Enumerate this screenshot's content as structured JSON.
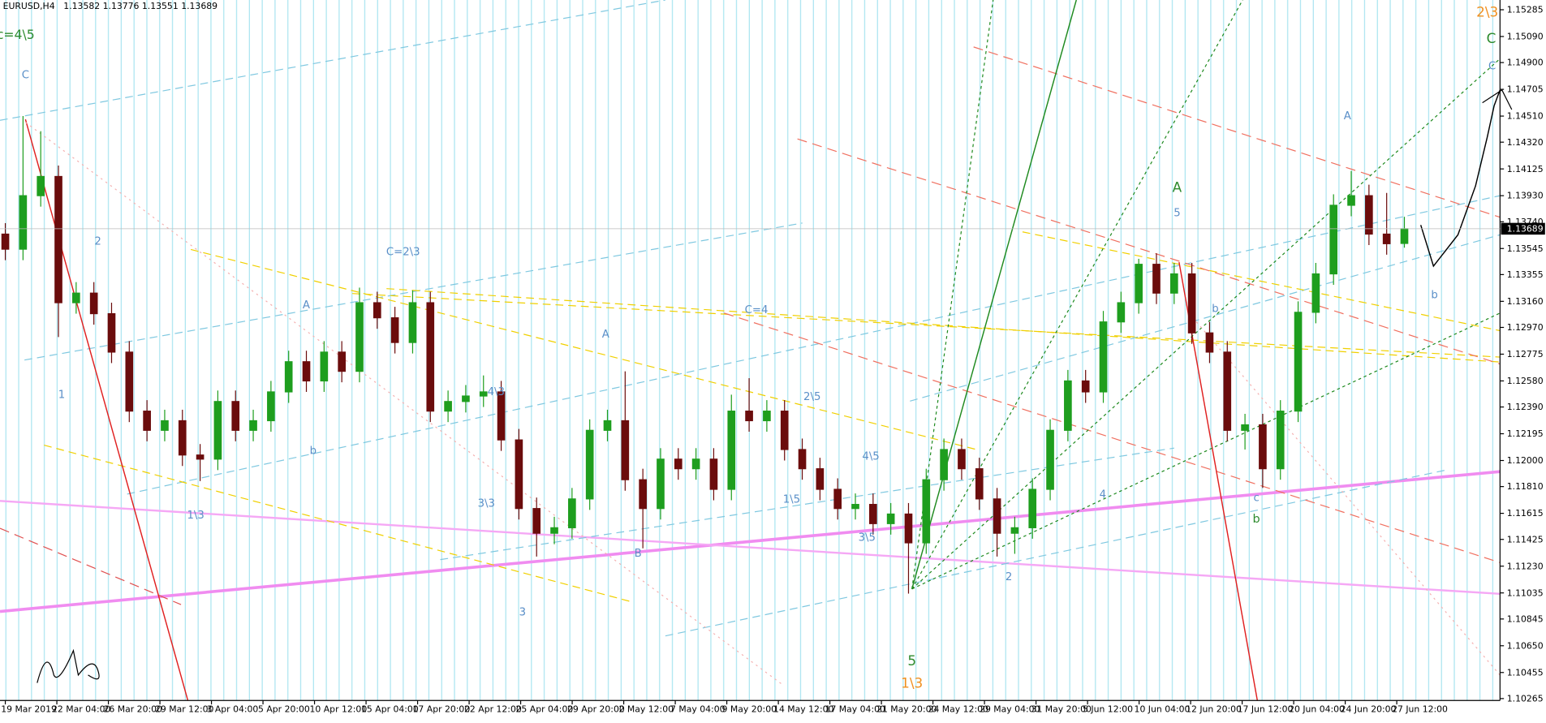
{
  "header": {
    "symbol": "EURUSD,H4"
  },
  "chart_data": {
    "type": "candlestick",
    "x": [
      0,
      1,
      2,
      3,
      4,
      5,
      6,
      7,
      8,
      9,
      10,
      11,
      12,
      13,
      14,
      15,
      16,
      17,
      18,
      19,
      20,
      21,
      22,
      23,
      24,
      25,
      26,
      27,
      28,
      29,
      30,
      31,
      32,
      33,
      34,
      35,
      36,
      37,
      38,
      39,
      40,
      41,
      42,
      43,
      44,
      45,
      46,
      47,
      48,
      49,
      50,
      51,
      52,
      53,
      54,
      55,
      56,
      57,
      58,
      59,
      60,
      61,
      62,
      63,
      64,
      65,
      66,
      67,
      68,
      69,
      70,
      71,
      72,
      73,
      74,
      75,
      76,
      77,
      78,
      79
    ],
    "open": [
      1.1365,
      1.1354,
      1.1393,
      1.1407,
      1.1315,
      1.1322,
      1.1307,
      1.1279,
      1.1236,
      1.1222,
      1.1229,
      1.1204,
      1.1201,
      1.1243,
      1.1222,
      1.1229,
      1.125,
      1.1272,
      1.1258,
      1.1279,
      1.1265,
      1.1315,
      1.1304,
      1.1286,
      1.1315,
      1.1236,
      1.1243,
      1.1247,
      1.125,
      1.1215,
      1.1165,
      1.1147,
      1.1151,
      1.1172,
      1.1222,
      1.1229,
      1.1186,
      1.1165,
      1.1201,
      1.1194,
      1.1201,
      1.1179,
      1.1236,
      1.1229,
      1.1236,
      1.1208,
      1.1194,
      1.1179,
      1.1165,
      1.1168,
      1.1154,
      1.1161,
      1.114,
      1.1186,
      1.1208,
      1.1194,
      1.1172,
      1.1147,
      1.1151,
      1.1179,
      1.1222,
      1.1258,
      1.125,
      1.1301,
      1.1315,
      1.1343,
      1.1322,
      1.1336,
      1.1293,
      1.1279,
      1.1222,
      1.1226,
      1.1194,
      1.1236,
      1.1308,
      1.1336,
      1.1386,
      1.1393,
      1.1365,
      1.13582
    ],
    "high": [
      1.1373,
      1.1451,
      1.144,
      1.1415,
      1.133,
      1.133,
      1.1315,
      1.1287,
      1.1244,
      1.1237,
      1.1237,
      1.1212,
      1.1251,
      1.1251,
      1.1237,
      1.1258,
      1.128,
      1.128,
      1.1287,
      1.1287,
      1.1326,
      1.1323,
      1.1312,
      1.1324,
      1.1323,
      1.1251,
      1.1255,
      1.1262,
      1.1258,
      1.1223,
      1.1173,
      1.1159,
      1.118,
      1.123,
      1.1237,
      1.1265,
      1.1194,
      1.1209,
      1.1209,
      1.1209,
      1.1209,
      1.1248,
      1.126,
      1.1244,
      1.1244,
      1.1216,
      1.1202,
      1.1187,
      1.1176,
      1.1176,
      1.1169,
      1.1169,
      1.1194,
      1.1216,
      1.1216,
      1.1202,
      1.118,
      1.1159,
      1.1187,
      1.123,
      1.1266,
      1.1266,
      1.1309,
      1.1323,
      1.1347,
      1.1351,
      1.1344,
      1.1344,
      1.1301,
      1.1287,
      1.1234,
      1.1234,
      1.1244,
      1.1316,
      1.1344,
      1.1394,
      1.1411,
      1.1401,
      1.1395,
      1.13776
    ],
    "low": [
      1.1346,
      1.1346,
      1.1385,
      1.129,
      1.1307,
      1.1299,
      1.1271,
      1.1228,
      1.1214,
      1.1214,
      1.1196,
      1.1185,
      1.1193,
      1.1214,
      1.1214,
      1.1221,
      1.1242,
      1.125,
      1.125,
      1.1257,
      1.1257,
      1.1296,
      1.1278,
      1.1278,
      1.1228,
      1.1228,
      1.1235,
      1.1239,
      1.1207,
      1.1157,
      1.113,
      1.1139,
      1.1143,
      1.1164,
      1.1214,
      1.1178,
      1.1136,
      1.1157,
      1.1186,
      1.1186,
      1.1171,
      1.1171,
      1.1221,
      1.1221,
      1.12,
      1.1186,
      1.1171,
      1.1157,
      1.1157,
      1.1146,
      1.1146,
      1.1103,
      1.1132,
      1.1178,
      1.1186,
      1.1164,
      1.113,
      1.1132,
      1.1143,
      1.1171,
      1.1214,
      1.1242,
      1.1242,
      1.1293,
      1.1307,
      1.1314,
      1.1314,
      1.1285,
      1.1271,
      1.1214,
      1.1208,
      1.118,
      1.1186,
      1.1228,
      1.13,
      1.1328,
      1.1378,
      1.1357,
      1.135,
      1.13551
    ],
    "close": [
      1.1354,
      1.1393,
      1.1407,
      1.1315,
      1.1322,
      1.1307,
      1.1279,
      1.1236,
      1.1222,
      1.1229,
      1.1204,
      1.1201,
      1.1243,
      1.1222,
      1.1229,
      1.125,
      1.1272,
      1.1258,
      1.1279,
      1.1265,
      1.1315,
      1.1304,
      1.1286,
      1.1315,
      1.1236,
      1.1243,
      1.1247,
      1.125,
      1.1215,
      1.1165,
      1.1147,
      1.1151,
      1.1172,
      1.1222,
      1.1229,
      1.1186,
      1.1165,
      1.1201,
      1.1194,
      1.1201,
      1.1179,
      1.1236,
      1.1229,
      1.1236,
      1.1208,
      1.1194,
      1.1179,
      1.1165,
      1.1168,
      1.1154,
      1.1161,
      1.114,
      1.1186,
      1.1208,
      1.1194,
      1.1172,
      1.1147,
      1.1151,
      1.1179,
      1.1222,
      1.1258,
      1.125,
      1.1301,
      1.1315,
      1.1343,
      1.1322,
      1.1336,
      1.1293,
      1.1279,
      1.1222,
      1.1226,
      1.1194,
      1.1236,
      1.1308,
      1.1336,
      1.1386,
      1.1393,
      1.1365,
      1.1358,
      1.13689
    ],
    "up_color": "#1e9e1e",
    "down_color": "#6b0c0c",
    "xlim": [
      -0.3,
      84.4
    ],
    "ylim": [
      1.10251,
      1.15356
    ],
    "xticks": [
      {
        "value": 0,
        "label": "19 Mar 2019"
      },
      {
        "value": 2.91,
        "label": "22 Mar 04:00"
      },
      {
        "value": 5.82,
        "label": "26 Mar 20:00"
      },
      {
        "value": 8.73,
        "label": "29 Mar 12:00"
      },
      {
        "value": 11.64,
        "label": "3 Apr 04:00"
      },
      {
        "value": 14.55,
        "label": "5 Apr 20:00"
      },
      {
        "value": 17.46,
        "label": "10 Apr 12:00"
      },
      {
        "value": 20.37,
        "label": "15 Apr 04:00"
      },
      {
        "value": 23.28,
        "label": "17 Apr 20:00"
      },
      {
        "value": 26.19,
        "label": "22 Apr 12:00"
      },
      {
        "value": 29.1,
        "label": "25 Apr 04:00"
      },
      {
        "value": 32.01,
        "label": "29 Apr 20:00"
      },
      {
        "value": 34.92,
        "label": "2 May 12:00"
      },
      {
        "value": 37.83,
        "label": "7 May 04:00"
      },
      {
        "value": 40.74,
        "label": "9 May 20:00"
      },
      {
        "value": 43.65,
        "label": "14 May 12:00"
      },
      {
        "value": 46.56,
        "label": "17 May 04:00"
      },
      {
        "value": 49.47,
        "label": "21 May 20:00"
      },
      {
        "value": 52.38,
        "label": "24 May 12:00"
      },
      {
        "value": 55.29,
        "label": "29 May 04:00"
      },
      {
        "value": 58.2,
        "label": "31 May 20:00"
      },
      {
        "value": 61.11,
        "label": "5 Jun 12:00"
      },
      {
        "value": 64.02,
        "label": "10 Jun 04:00"
      },
      {
        "value": 66.93,
        "label": "12 Jun 20:00"
      },
      {
        "value": 69.84,
        "label": "17 Jun 12:00"
      },
      {
        "value": 72.75,
        "label": "20 Jun 04:00"
      },
      {
        "value": 75.66,
        "label": "24 Jun 20:00"
      },
      {
        "value": 78.57,
        "label": "27 Jun 12:00"
      }
    ],
    "yticks": [
      1.15285,
      {
        "value": 1.1509,
        "label": "1.15090"
      },
      {
        "value": 1.149,
        "label": "1.14900"
      },
      1.14705,
      {
        "value": 1.1451,
        "label": "1.14510"
      },
      {
        "value": 1.1432,
        "label": "1.14320"
      },
      1.14125,
      {
        "value": 1.1393,
        "label": "1.13930"
      },
      {
        "value": 1.1374,
        "label": "1.13740"
      },
      1.13545,
      1.13355,
      {
        "value": 1.1316,
        "label": "1.13160"
      },
      {
        "value": 1.1297,
        "label": "1.12970"
      },
      1.12775,
      {
        "value": 1.1258,
        "label": "1.12580"
      },
      {
        "value": 1.1239,
        "label": "1.12390"
      },
      1.12195,
      {
        "value": 1.12,
        "label": "1.12000"
      },
      {
        "value": 1.1181,
        "label": "1.11810"
      },
      1.11615,
      1.11425,
      {
        "value": 1.1123,
        "label": "1.11230"
      },
      1.11035,
      1.10845,
      {
        "value": 1.1065,
        "label": "1.10650"
      },
      1.10455,
      1.10265
    ]
  },
  "annotations": [
    "c=4\\5",
    "C",
    "1",
    "2",
    "1\\3",
    "A",
    "C=2\\3",
    "b",
    "4\\3",
    "3\\3",
    "A",
    "B",
    "3",
    "C=4",
    "2\\5",
    "4\\5",
    "1\\5",
    "3\\5",
    "5",
    "1\\3",
    "2",
    "4",
    "A",
    "5",
    "b",
    "c",
    "b",
    "A",
    "b",
    "2\\3",
    "C",
    "C"
  ]
}
